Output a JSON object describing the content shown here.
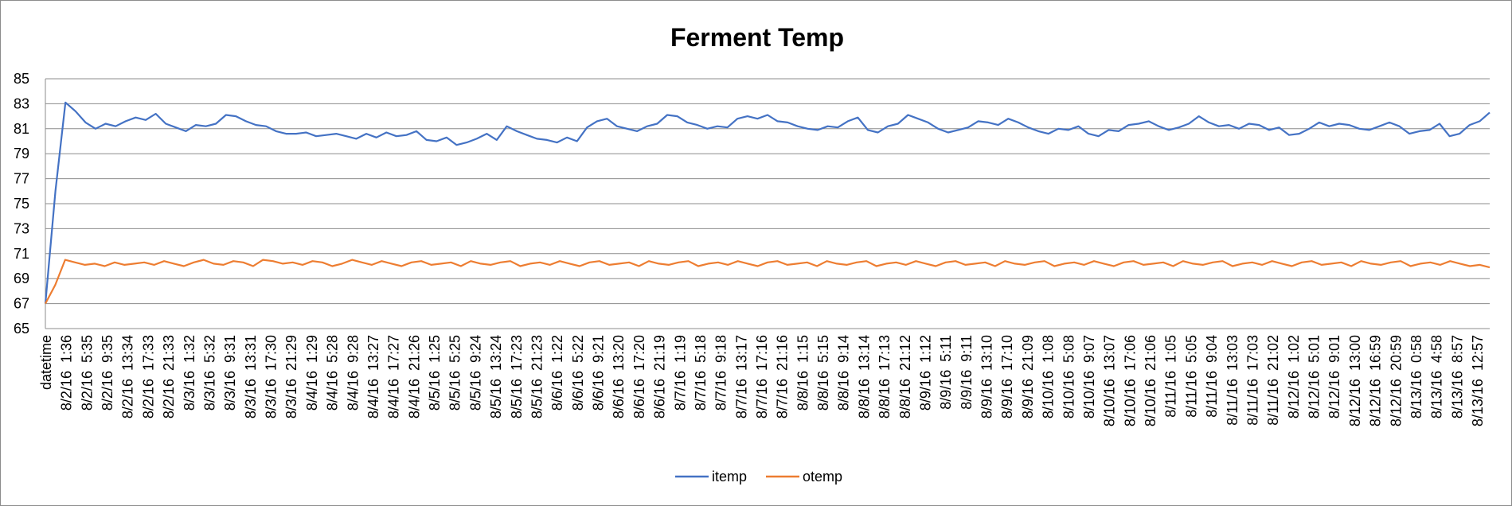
{
  "chart_data": {
    "type": "line",
    "title": "Ferment Temp",
    "xlabel": "",
    "ylabel": "",
    "ylim": [
      65,
      85
    ],
    "yticks": [
      65,
      67,
      69,
      71,
      73,
      75,
      77,
      79,
      81,
      83,
      85
    ],
    "grid": true,
    "legend_position": "bottom",
    "x_start": "8/1/16 21:37",
    "x_end": "8/13/16 21:05",
    "x_tick_labels": [
      "datetime",
      "8/2/16  1:36",
      "8/2/16  5:35",
      "8/2/16  9:35",
      "8/2/16  13:34",
      "8/2/16  17:33",
      "8/2/16  21:33",
      "8/3/16  1:32",
      "8/3/16  5:32",
      "8/3/16  9:31",
      "8/3/16  13:31",
      "8/3/16  17:30",
      "8/3/16  21:29",
      "8/4/16  1:29",
      "8/4/16  5:28",
      "8/4/16  9:28",
      "8/4/16  13:27",
      "8/4/16  17:27",
      "8/4/16  21:26",
      "8/5/16  1:25",
      "8/5/16  5:25",
      "8/5/16  9:24",
      "8/5/16  13:24",
      "8/5/16  17:23",
      "8/5/16  21:23",
      "8/6/16  1:22",
      "8/6/16  5:22",
      "8/6/16  9:21",
      "8/6/16  13:20",
      "8/6/16  17:20",
      "8/6/16  21:19",
      "8/7/16  1:19",
      "8/7/16  5:18",
      "8/7/16  9:18",
      "8/7/16  13:17",
      "8/7/16  17:16",
      "8/7/16  21:16",
      "8/8/16  1:15",
      "8/8/16  5:15",
      "8/8/16  9:14",
      "8/8/16  13:14",
      "8/8/16  17:13",
      "8/8/16  21:12",
      "8/9/16  1:12",
      "8/9/16  5:11",
      "8/9/16  9:11",
      "8/9/16  13:10",
      "8/9/16  17:10",
      "8/9/16  21:09",
      "8/10/16  1:08",
      "8/10/16  5:08",
      "8/10/16  9:07",
      "8/10/16  13:07",
      "8/10/16  17:06",
      "8/10/16  21:06",
      "8/11/16  1:05",
      "8/11/16  5:05",
      "8/11/16  9:04",
      "8/11/16  13:03",
      "8/11/16  17:03",
      "8/11/16  21:02",
      "8/12/16  1:02",
      "8/12/16  5:01",
      "8/12/16  9:01",
      "8/12/16  13:00",
      "8/12/16  16:59",
      "8/12/16  20:59",
      "8/13/16  0:58",
      "8/13/16  4:58",
      "8/13/16  8:57",
      "8/13/16  12:57"
    ],
    "series": [
      {
        "name": "itemp",
        "color": "#4472C4",
        "values": [
          67.0,
          76.0,
          83.1,
          82.4,
          81.5,
          81.0,
          81.4,
          81.2,
          81.6,
          81.9,
          81.7,
          82.2,
          81.4,
          81.1,
          80.8,
          81.3,
          81.2,
          81.4,
          82.1,
          82.0,
          81.6,
          81.3,
          81.2,
          80.8,
          80.6,
          80.6,
          80.7,
          80.4,
          80.5,
          80.6,
          80.4,
          80.2,
          80.6,
          80.3,
          80.7,
          80.4,
          80.5,
          80.8,
          80.1,
          80.0,
          80.3,
          79.7,
          79.9,
          80.2,
          80.6,
          80.1,
          81.2,
          80.8,
          80.5,
          80.2,
          80.1,
          79.9,
          80.3,
          80.0,
          81.1,
          81.6,
          81.8,
          81.2,
          81.0,
          80.8,
          81.2,
          81.4,
          82.1,
          82.0,
          81.5,
          81.3,
          81.0,
          81.2,
          81.1,
          81.8,
          82.0,
          81.8,
          82.1,
          81.6,
          81.5,
          81.2,
          81.0,
          80.9,
          81.2,
          81.1,
          81.6,
          81.9,
          80.9,
          80.7,
          81.2,
          81.4,
          82.1,
          81.8,
          81.5,
          81.0,
          80.7,
          80.9,
          81.1,
          81.6,
          81.5,
          81.3,
          81.8,
          81.5,
          81.1,
          80.8,
          80.6,
          81.0,
          80.9,
          81.2,
          80.6,
          80.4,
          80.9,
          80.8,
          81.3,
          81.4,
          81.6,
          81.2,
          80.9,
          81.1,
          81.4,
          82.0,
          81.5,
          81.2,
          81.3,
          81.0,
          81.4,
          81.3,
          80.9,
          81.1,
          80.5,
          80.6,
          81.0,
          81.5,
          81.2,
          81.4,
          81.3,
          81.0,
          80.9,
          81.2,
          81.5,
          81.2,
          80.6,
          80.8,
          80.9,
          81.4,
          80.4,
          80.6,
          81.3,
          81.6,
          82.3
        ]
      },
      {
        "name": "otemp",
        "color": "#ED7D31",
        "values": [
          67.0,
          68.5,
          70.5,
          70.3,
          70.1,
          70.2,
          70.0,
          70.3,
          70.1,
          70.2,
          70.3,
          70.1,
          70.4,
          70.2,
          70.0,
          70.3,
          70.5,
          70.2,
          70.1,
          70.4,
          70.3,
          70.0,
          70.5,
          70.4,
          70.2,
          70.3,
          70.1,
          70.4,
          70.3,
          70.0,
          70.2,
          70.5,
          70.3,
          70.1,
          70.4,
          70.2,
          70.0,
          70.3,
          70.4,
          70.1,
          70.2,
          70.3,
          70.0,
          70.4,
          70.2,
          70.1,
          70.3,
          70.4,
          70.0,
          70.2,
          70.3,
          70.1,
          70.4,
          70.2,
          70.0,
          70.3,
          70.4,
          70.1,
          70.2,
          70.3,
          70.0,
          70.4,
          70.2,
          70.1,
          70.3,
          70.4,
          70.0,
          70.2,
          70.3,
          70.1,
          70.4,
          70.2,
          70.0,
          70.3,
          70.4,
          70.1,
          70.2,
          70.3,
          70.0,
          70.4,
          70.2,
          70.1,
          70.3,
          70.4,
          70.0,
          70.2,
          70.3,
          70.1,
          70.4,
          70.2,
          70.0,
          70.3,
          70.4,
          70.1,
          70.2,
          70.3,
          70.0,
          70.4,
          70.2,
          70.1,
          70.3,
          70.4,
          70.0,
          70.2,
          70.3,
          70.1,
          70.4,
          70.2,
          70.0,
          70.3,
          70.4,
          70.1,
          70.2,
          70.3,
          70.0,
          70.4,
          70.2,
          70.1,
          70.3,
          70.4,
          70.0,
          70.2,
          70.3,
          70.1,
          70.4,
          70.2,
          70.0,
          70.3,
          70.4,
          70.1,
          70.2,
          70.3,
          70.0,
          70.4,
          70.2,
          70.1,
          70.3,
          70.4,
          70.0,
          70.2,
          70.3,
          70.1,
          70.4,
          70.2,
          70.0,
          70.1,
          69.9
        ]
      }
    ]
  }
}
